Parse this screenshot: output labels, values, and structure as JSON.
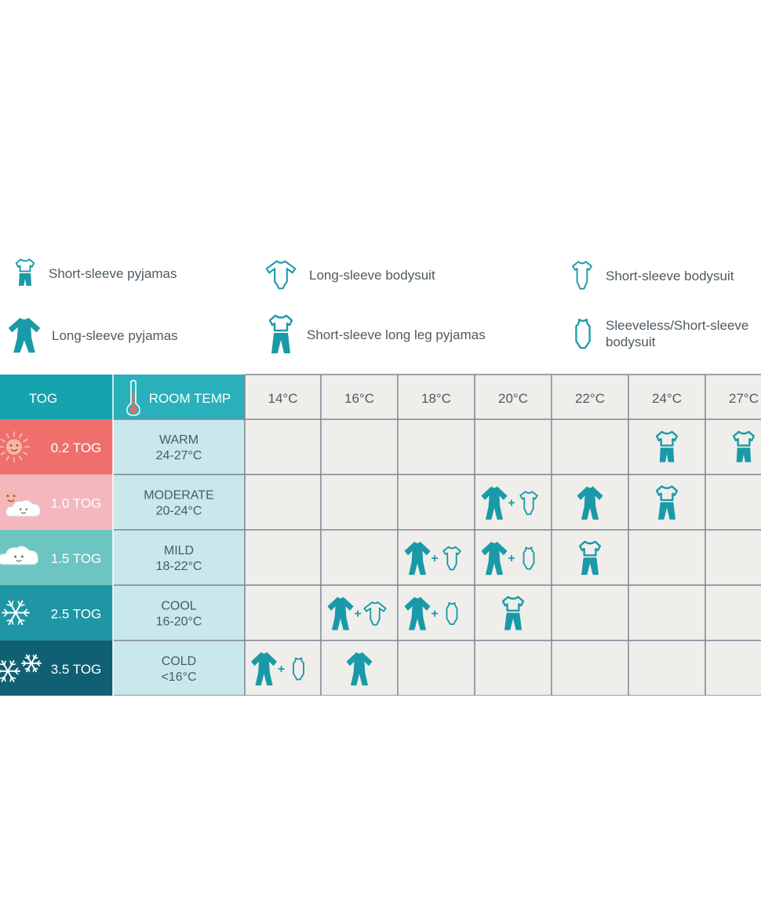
{
  "legend": [
    {
      "icon": "short-sleeve-pyjamas-icon",
      "label": "Short-sleeve pyjamas"
    },
    {
      "icon": "long-sleeve-bodysuit-icon",
      "label": "Long-sleeve bodysuit"
    },
    {
      "icon": "short-sleeve-bodysuit-icon",
      "label": "Short-sleeve bodysuit"
    },
    {
      "icon": "long-sleeve-pyjamas-icon",
      "label": "Long-sleeve pyjamas"
    },
    {
      "icon": "short-sleeve-long-leg-pyjamas-icon",
      "label": "Short-sleeve long leg pyjamas"
    },
    {
      "icon": "sleeveless-bodysuit-icon",
      "label": "Sleeveless/Short-sleeve bodysuit"
    }
  ],
  "chart_data": {
    "type": "table",
    "header": {
      "tog": "TOG",
      "room_temp": "ROOM TEMP"
    },
    "temperatures": [
      "14°C",
      "16°C",
      "18°C",
      "20°C",
      "22°C",
      "24°C",
      "27°C"
    ],
    "rows": [
      {
        "tog": "0.2 TOG",
        "room": "WARM",
        "range": "24-27°C",
        "weather": "sun-icon",
        "cells": [
          [],
          [],
          [],
          [],
          [],
          [
            "ssp"
          ],
          [
            "ssp"
          ]
        ]
      },
      {
        "tog": "1.0 TOG",
        "room": "MODERATE",
        "range": "20-24°C",
        "weather": "sun-cloud-icon",
        "cells": [
          [],
          [],
          [],
          [
            "lsp",
            "ssb"
          ],
          [
            "lsp"
          ],
          [
            "sslp"
          ],
          []
        ]
      },
      {
        "tog": "1.5 TOG",
        "room": "MILD",
        "range": "18-22°C",
        "weather": "cloud-icon",
        "cells": [
          [],
          [],
          [
            "lsp",
            "ssb"
          ],
          [
            "lsp",
            "slb"
          ],
          [
            "sslp"
          ],
          [],
          []
        ]
      },
      {
        "tog": "2.5 TOG",
        "room": "COOL",
        "range": "16-20°C",
        "weather": "snowflake-icon",
        "cells": [
          [],
          [
            "lsp",
            "lsb"
          ],
          [
            "lsp",
            "slb"
          ],
          [
            "sslp"
          ],
          [],
          [],
          []
        ]
      },
      {
        "tog": "3.5 TOG",
        "room": "COLD",
        "range": "<16°C",
        "weather": "two-snowflakes-icon",
        "cells": [
          [
            "lsp",
            "slb"
          ],
          [
            "lsp"
          ],
          [],
          [],
          [],
          [],
          []
        ]
      }
    ],
    "colors": {
      "header_teal": "#16a3b0",
      "room_col": "#c8e8ec",
      "grid_bg": "#efeeeb",
      "grid_line": "#7e8594",
      "icon_teal": "#1a9aa8",
      "tog_rows": [
        "#ef6f6c",
        "#f3b7bd",
        "#6cc5c1",
        "#1e96a4",
        "#115f73"
      ]
    }
  }
}
